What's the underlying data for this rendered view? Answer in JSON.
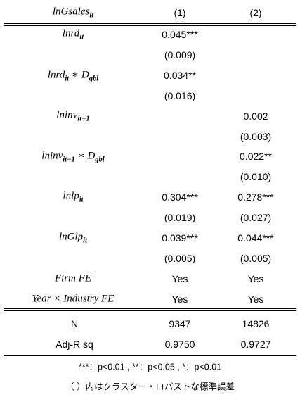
{
  "table": {
    "header": {
      "label": [
        {
          "text": "lnGsales"
        },
        {
          "sub": "it"
        }
      ],
      "columns": [
        "(1)",
        "(2)"
      ]
    },
    "rows": [
      {
        "label": [
          {
            "text": "lnrd"
          },
          {
            "sub": "it"
          }
        ],
        "cells": [
          "0.045***",
          null
        ]
      },
      {
        "label": null,
        "cells": [
          "(0.009)",
          null
        ]
      },
      {
        "label": [
          {
            "text": "lnrd"
          },
          {
            "sub": "it"
          },
          {
            "text": " ∗ D"
          },
          {
            "sub": "gbl"
          }
        ],
        "cells": [
          "0.034**",
          null
        ]
      },
      {
        "label": null,
        "cells": [
          "(0.016)",
          null
        ]
      },
      {
        "label": [
          {
            "text": "lninv"
          },
          {
            "sub": "it−1"
          }
        ],
        "cells": [
          null,
          "0.002"
        ]
      },
      {
        "label": null,
        "cells": [
          null,
          "(0.003)"
        ]
      },
      {
        "label": [
          {
            "text": "lninv"
          },
          {
            "sub": "it−1"
          },
          {
            "text": " ∗ D"
          },
          {
            "sub": "gbl"
          }
        ],
        "cells": [
          null,
          "0.022**"
        ]
      },
      {
        "label": null,
        "cells": [
          null,
          "(0.010)"
        ]
      },
      {
        "label": [
          {
            "text": "lnlp"
          },
          {
            "sub": "it"
          }
        ],
        "cells": [
          "0.304***",
          "0.278***"
        ]
      },
      {
        "label": null,
        "cells": [
          "(0.019)",
          "(0.027)"
        ]
      },
      {
        "label": [
          {
            "text": "lnGlp"
          },
          {
            "sub": "it"
          }
        ],
        "cells": [
          "0.039***",
          "0.044***"
        ]
      },
      {
        "label": null,
        "cells": [
          "(0.005)",
          "(0.005)"
        ]
      },
      {
        "label": [
          {
            "text": "Firm FE"
          }
        ],
        "cells": [
          "Yes",
          "Yes"
        ]
      },
      {
        "label": [
          {
            "text": "Year × Industry FE"
          }
        ],
        "cells": [
          "Yes",
          "Yes"
        ]
      }
    ],
    "stats": [
      {
        "label": "N",
        "cells": [
          "9347",
          "14826"
        ]
      },
      {
        "label": "Adj-R sq",
        "cells": [
          "0.9750",
          "0.9727"
        ]
      }
    ]
  },
  "notes": [
    "***：p<0.01 , **：p<0.05 , *：p<0.01",
    "（ ）内はクラスター・ロバストな標準誤差"
  ]
}
